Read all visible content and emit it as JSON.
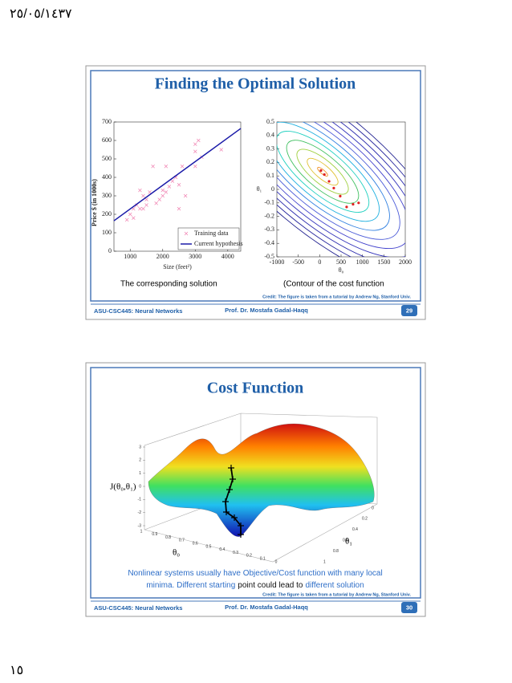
{
  "header": {
    "date": "٢٥/٠٥/١٤٣٧"
  },
  "footer": {
    "page": "١٥"
  },
  "slides": [
    {
      "title": "Finding the Optimal Solution",
      "chart_data": [
        {
          "type": "scatter",
          "ylabel": "Price $ (in 1000s)",
          "xlabel": "Size (feet²)",
          "xlim": [
            500,
            4400
          ],
          "ylim": [
            0,
            700
          ],
          "xticks": [
            1000,
            2000,
            3000,
            4000
          ],
          "yticks": [
            0,
            100,
            200,
            300,
            400,
            500,
            600,
            700
          ],
          "legend": "lower right",
          "series": [
            {
              "name": "Training data",
              "color": "#f080b0",
              "style": "markers",
              "x": [
                900,
                1000,
                1100,
                1100,
                1200,
                1300,
                1300,
                1400,
                1400,
                1500,
                1500,
                1600,
                1700,
                1800,
                1900,
                2000,
                2000,
                2100,
                2100,
                2200,
                2300,
                2400,
                2500,
                2500,
                2600,
                2700,
                3000,
                3000,
                3000,
                3100,
                3200,
                3800
              ],
              "values": [
                170,
                200,
                230,
                180,
                250,
                230,
                330,
                300,
                230,
                280,
                250,
                320,
                460,
                260,
                280,
                300,
                330,
                320,
                460,
                350,
                380,
                400,
                230,
                360,
                460,
                300,
                540,
                580,
                460,
                600,
                510,
                550
              ]
            },
            {
              "name": "Current hypothesis",
              "color": "#1a1aa8",
              "style": "line",
              "x": [
                500,
                4400
              ],
              "values": [
                165,
                665
              ]
            }
          ]
        },
        {
          "type": "contour",
          "xlabel": "θ₀",
          "ylabel": "θ₁",
          "xlim": [
            -1000,
            2000
          ],
          "ylim": [
            -0.5,
            0.5
          ],
          "xticks": [
            -1000,
            -500,
            0,
            500,
            1000,
            1500,
            2000
          ],
          "yticks": [
            -0.5,
            -0.4,
            -0.3,
            -0.2,
            -0.1,
            0,
            0.1,
            0.2,
            0.3,
            0.4,
            0.5
          ],
          "level_colors": [
            "#1a1a8c",
            "#23239c",
            "#2a2aac",
            "#3333bb",
            "#3f3fcc",
            "#4a5ad8",
            "#2f7fe0",
            "#20b0e0",
            "#20d0c0",
            "#40c060",
            "#a0d040",
            "#e0c030",
            "#f09020"
          ],
          "path": {
            "color": "#e02020",
            "x": [
              30,
              110,
              220,
              330,
              480,
              630,
              780,
              910
            ],
            "values": [
              0.14,
              0.11,
              0.06,
              0.01,
              -0.05,
              -0.13,
              -0.11,
              -0.1
            ]
          }
        }
      ],
      "captions": [
        "The corresponding solution",
        "(Contour of the cost function"
      ],
      "credit": "Credit: The figure is taken from a tutorial by Andrew Ng, Stanford Univ.",
      "course": "ASU-CSC445: Neural Networks",
      "author": "Prof. Dr. Mostafa Gadal-Haqq",
      "number": 29
    },
    {
      "title": "Cost Function",
      "chart_data": [
        {
          "type": "surface",
          "zlabel": "J(θ₀,θ₁)",
          "xlabel": "θ₀",
          "ylabel": "θ₁",
          "zticks": [
            3,
            2,
            1,
            0,
            -1,
            -2,
            -3
          ],
          "xticks": [
            1,
            0.9,
            0.8,
            0.7,
            0.6,
            0.5,
            0.4,
            0.3,
            0.2,
            0.1,
            0
          ],
          "yticks": [
            0,
            0.2,
            0.4,
            0.6,
            0.8,
            1
          ]
        }
      ],
      "paragraph": [
        "Nonlinear systems usually have Objective/Cost function with many local",
        "minima. Different starting",
        "point could lead to",
        "different solution"
      ],
      "credit": "Credit: The figure is taken from a tutorial by Andrew Ng, Stanford Univ.",
      "course": "ASU-CSC445: Neural Networks",
      "author": "Prof. Dr. Mostafa Gadal-Haqq",
      "number": 30
    }
  ]
}
